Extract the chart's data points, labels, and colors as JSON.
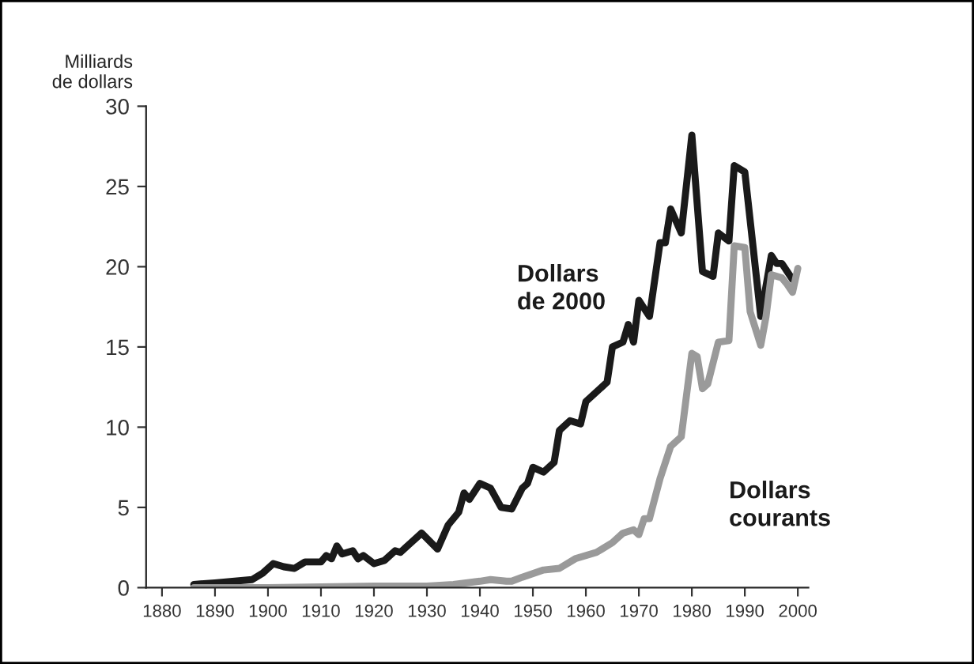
{
  "chart_data": {
    "type": "line",
    "ylabel": "Milliards\nde dollars",
    "xlim": [
      1877,
      2002
    ],
    "xticks": [
      1880,
      1890,
      1900,
      1910,
      1920,
      1930,
      1940,
      1950,
      1960,
      1970,
      1980,
      1990,
      2000
    ],
    "ylim": [
      0,
      30
    ],
    "yticks": [
      0,
      5,
      10,
      15,
      20,
      25,
      30
    ],
    "grid": false,
    "legend": false,
    "marker": "none",
    "line_style": "solid",
    "series": [
      {
        "name": "Dollars de 2000",
        "color": "#1a1a1a",
        "x": [
          1886,
          1890,
          1897,
          1899,
          1901,
          1903,
          1905,
          1907,
          1910,
          1911,
          1912,
          1913,
          1914,
          1916,
          1917,
          1918,
          1920,
          1922,
          1924,
          1925,
          1927,
          1929,
          1932,
          1934,
          1936,
          1937,
          1938,
          1940,
          1942,
          1944,
          1946,
          1948,
          1949,
          1950,
          1952,
          1954,
          1955,
          1957,
          1959,
          1960,
          1962,
          1964,
          1965,
          1967,
          1968,
          1969,
          1970,
          1972,
          1974,
          1975,
          1976,
          1978,
          1980,
          1982,
          1984,
          1985,
          1987,
          1988,
          1990,
          1992,
          1993,
          1995,
          1996,
          1997,
          1998,
          1999
        ],
        "values": [
          0.2,
          0.3,
          0.5,
          0.9,
          1.5,
          1.3,
          1.2,
          1.6,
          1.6,
          2.0,
          1.8,
          2.6,
          2.1,
          2.3,
          1.8,
          2.0,
          1.5,
          1.7,
          2.3,
          2.2,
          2.8,
          3.4,
          2.4,
          3.9,
          4.7,
          5.9,
          5.5,
          6.5,
          6.2,
          5.0,
          4.9,
          6.2,
          6.5,
          7.5,
          7.2,
          7.8,
          9.8,
          10.4,
          10.2,
          11.6,
          12.2,
          12.8,
          15.0,
          15.3,
          16.4,
          15.3,
          17.9,
          16.9,
          21.5,
          21.5,
          23.6,
          22.1,
          28.2,
          19.7,
          19.4,
          22.1,
          21.6,
          26.3,
          25.9,
          19.9,
          16.9,
          20.7,
          20.2,
          20.2,
          19.7,
          19.2
        ]
      },
      {
        "name": "Dollars courants",
        "color": "#9a9a9a",
        "x": [
          1886,
          1900,
          1920,
          1930,
          1935,
          1940,
          1942,
          1945,
          1946,
          1948,
          1952,
          1955,
          1958,
          1960,
          1962,
          1965,
          1967,
          1969,
          1970,
          1971,
          1972,
          1974,
          1976,
          1978,
          1980,
          1981,
          1982,
          1983,
          1985,
          1987,
          1988,
          1990,
          1991,
          1993,
          1994,
          1995,
          1997,
          1998,
          1999,
          2000
        ],
        "values": [
          0.0,
          0.0,
          0.1,
          0.1,
          0.2,
          0.4,
          0.5,
          0.4,
          0.4,
          0.65,
          1.1,
          1.2,
          1.8,
          2.0,
          2.2,
          2.8,
          3.4,
          3.6,
          3.3,
          4.3,
          4.3,
          6.8,
          8.8,
          9.4,
          14.6,
          14.4,
          12.4,
          12.7,
          15.3,
          15.4,
          21.3,
          21.2,
          17.2,
          15.1,
          16.9,
          19.5,
          19.3,
          18.9,
          18.4,
          19.9
        ]
      }
    ]
  }
}
